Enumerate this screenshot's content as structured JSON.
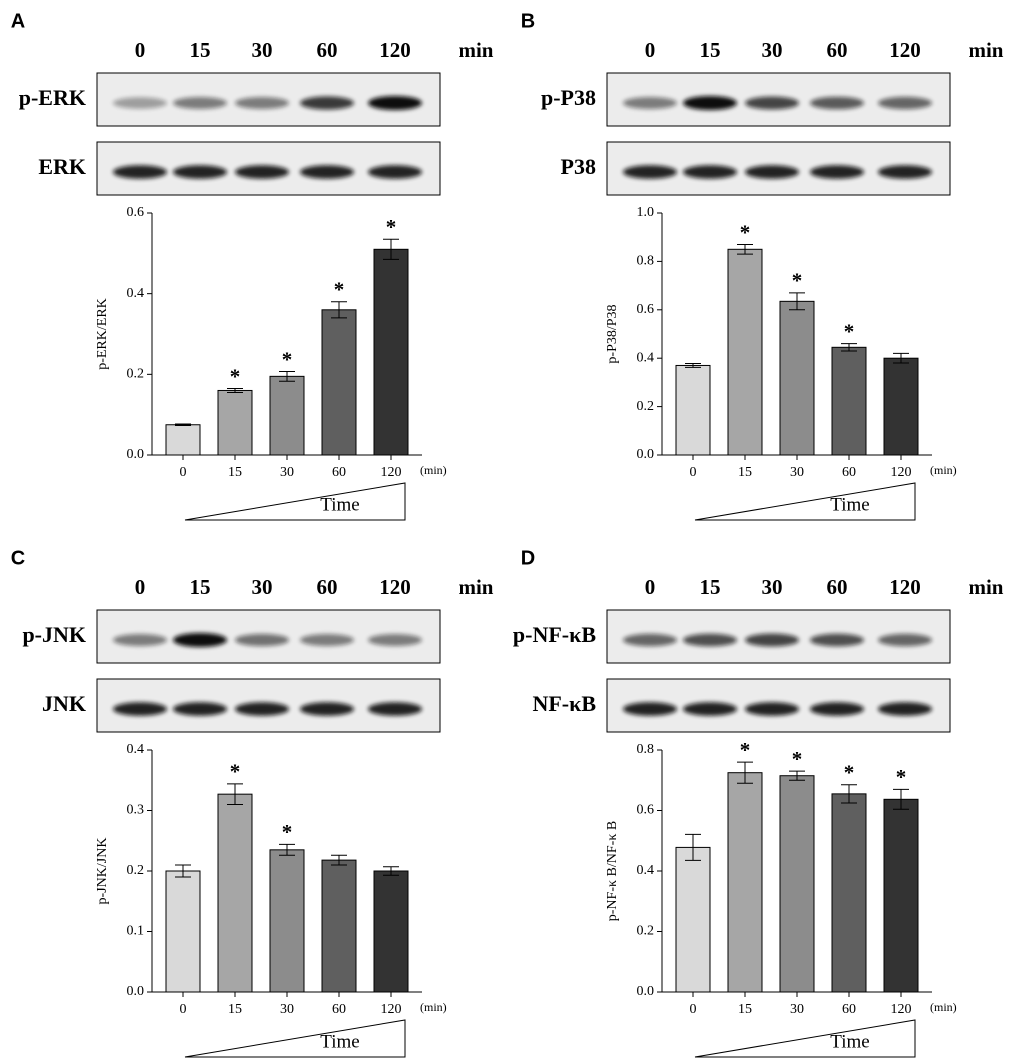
{
  "chart_data": [
    {
      "type": "bar",
      "panel": "A",
      "lanes_unit": "min",
      "blots": [
        "p-ERK",
        "ERK"
      ],
      "ylabel": "p-ERK/ERK",
      "categories": [
        "0",
        "15",
        "30",
        "60",
        "120"
      ],
      "x_unit": "(min)",
      "time_label": "Time",
      "values": [
        0.075,
        0.16,
        0.195,
        0.36,
        0.51
      ],
      "errors": [
        0.002,
        0.005,
        0.012,
        0.02,
        0.025
      ],
      "annotations": [
        null,
        "*",
        "*",
        "*",
        "*"
      ],
      "colors": [
        "#d9d9d9",
        "#a6a6a6",
        "#8c8c8c",
        "#5f5f5f",
        "#333333"
      ],
      "ylim": [
        0,
        0.6
      ],
      "yticks": [
        {
          "value": 0,
          "label": "0.0"
        },
        0.2,
        0.4,
        0.6
      ]
    },
    {
      "type": "bar",
      "panel": "B",
      "lanes_unit": "min",
      "blots": [
        "p-P38",
        "P38"
      ],
      "ylabel": "p-P38/P38",
      "categories": [
        "0",
        "15",
        "30",
        "60",
        "120"
      ],
      "x_unit": "(min)",
      "time_label": "Time",
      "values": [
        0.37,
        0.85,
        0.635,
        0.445,
        0.4
      ],
      "errors": [
        0.008,
        0.02,
        0.035,
        0.015,
        0.02
      ],
      "annotations": [
        null,
        "*",
        "*",
        "*",
        null
      ],
      "colors": [
        "#d9d9d9",
        "#a6a6a6",
        "#8c8c8c",
        "#5f5f5f",
        "#333333"
      ],
      "ylim": [
        0,
        1.0
      ],
      "yticks": [
        {
          "value": 0,
          "label": "0.0"
        },
        0.2,
        0.4,
        0.6,
        0.8,
        {
          "value": 1,
          "label": "1.0"
        }
      ]
    },
    {
      "type": "bar",
      "panel": "C",
      "lanes_unit": "min",
      "blots": [
        "p-JNK",
        "JNK"
      ],
      "ylabel": "p-JNK/JNK",
      "categories": [
        "0",
        "15",
        "30",
        "60",
        "120"
      ],
      "x_unit": "(min)",
      "time_label": "Time",
      "values": [
        0.2,
        0.327,
        0.235,
        0.218,
        0.2
      ],
      "errors": [
        0.01,
        0.017,
        0.009,
        0.008,
        0.007
      ],
      "annotations": [
        null,
        "*",
        "*",
        null,
        null
      ],
      "colors": [
        "#d9d9d9",
        "#a6a6a6",
        "#8c8c8c",
        "#5f5f5f",
        "#333333"
      ],
      "ylim": [
        0,
        0.4
      ],
      "yticks": [
        {
          "value": 0,
          "label": "0.0"
        },
        0.1,
        0.2,
        0.3,
        0.4
      ]
    },
    {
      "type": "bar",
      "panel": "D",
      "lanes_unit": "min",
      "blots": [
        "p-NF-κB",
        "NF-κB"
      ],
      "ylabel": "p-NF-κ B/NF-κ B",
      "categories": [
        "0",
        "15",
        "30",
        "60",
        "120"
      ],
      "x_unit": "(min)",
      "time_label": "Time",
      "values": [
        0.478,
        0.725,
        0.715,
        0.655,
        0.637
      ],
      "errors": [
        0.043,
        0.035,
        0.015,
        0.03,
        0.033
      ],
      "annotations": [
        null,
        "*",
        "*",
        "*",
        "*"
      ],
      "colors": [
        "#d9d9d9",
        "#a6a6a6",
        "#8c8c8c",
        "#5f5f5f",
        "#333333"
      ],
      "ylim": [
        0,
        0.8
      ],
      "yticks": [
        {
          "value": 0,
          "label": "0.0"
        },
        0.2,
        0.4,
        0.6,
        0.8
      ]
    }
  ]
}
